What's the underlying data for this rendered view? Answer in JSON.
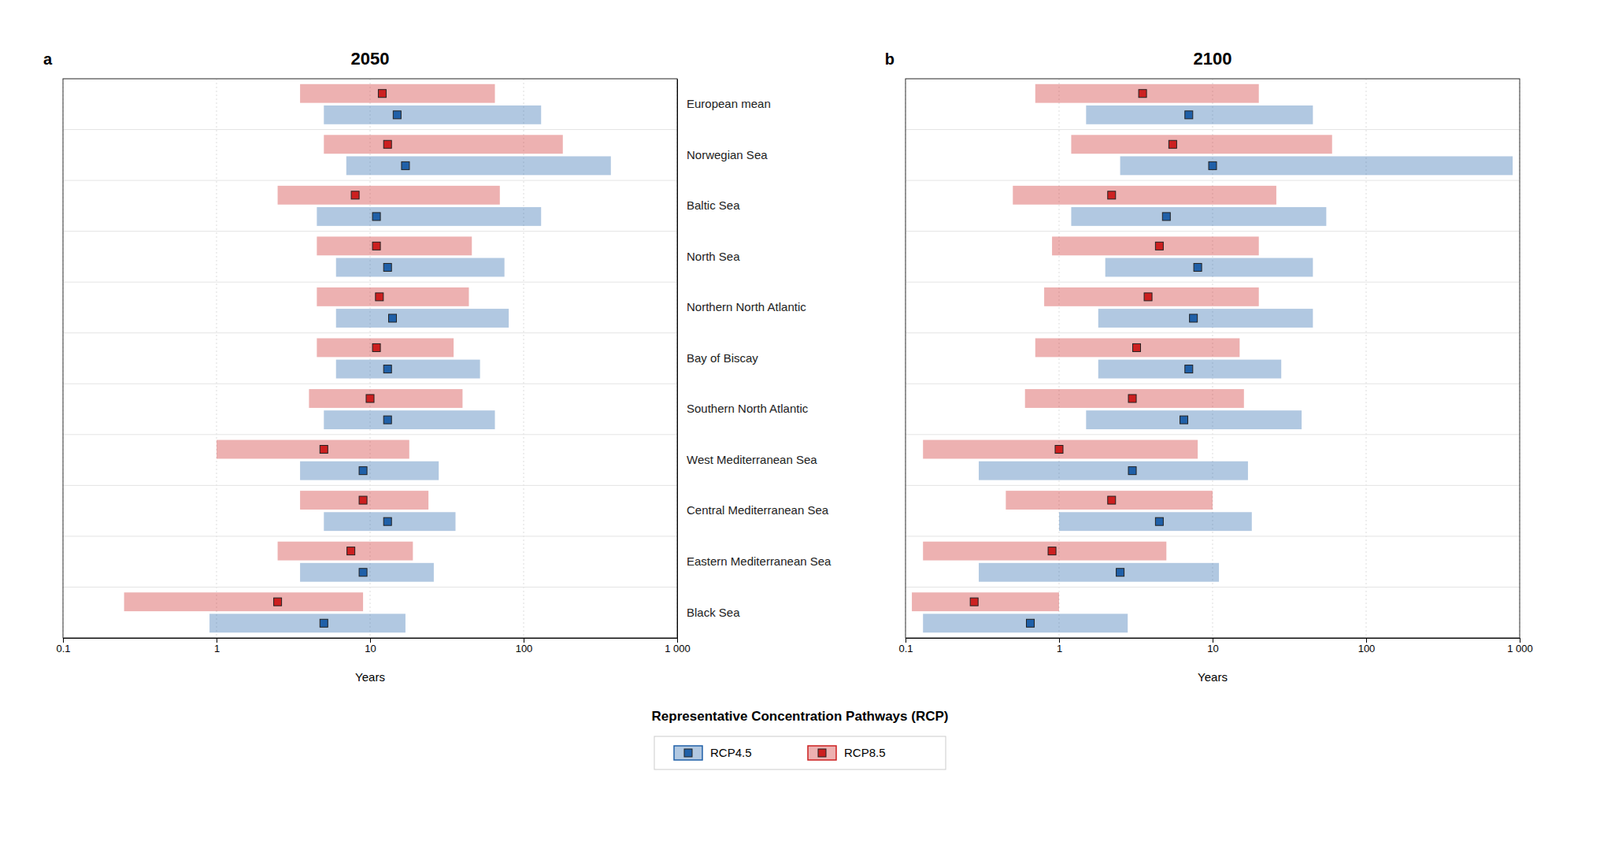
{
  "chart_data": [
    {
      "type": "bar",
      "orientation": "horizontal",
      "title": "2050",
      "annotation": "a",
      "x_label": "Years",
      "log": "x",
      "grid": true,
      "tick_labels": true,
      "legend": "bottom",
      "legend_title": "Representative Concentration Pathways (RCP)",
      "xlim": [
        0.1,
        1000
      ],
      "xticks": [
        0.1,
        1,
        10,
        100,
        {
          "value": 1000,
          "label": "1 000"
        }
      ],
      "categories": [
        "European mean",
        "Norwegian Sea",
        "Baltic Sea",
        "North Sea",
        "Northern North Atlantic",
        "Bay of Biscay",
        "Southern North Atlantic",
        "West Mediterranean Sea",
        "Central Mediterranean Sea",
        "Eastern Mediterranean Sea",
        "Black Sea"
      ],
      "series": [
        {
          "name": "RCP4.5",
          "color": "#2060a8",
          "low": [
            5.0,
            7.0,
            4.5,
            6.0,
            6.0,
            6.0,
            5.0,
            3.5,
            5.0,
            3.5,
            0.9
          ],
          "values": [
            15.0,
            17.0,
            11.0,
            13.0,
            14.0,
            13.0,
            13.0,
            9.0,
            13.0,
            9.0,
            5.0
          ],
          "high": [
            130.0,
            370.0,
            130.0,
            75.0,
            80.0,
            52.0,
            65.0,
            28.0,
            36.0,
            26.0,
            17.0
          ]
        },
        {
          "name": "RCP8.5",
          "color": "#cc2020",
          "low": [
            3.5,
            5.0,
            2.5,
            4.5,
            4.5,
            4.5,
            4.0,
            1.0,
            3.5,
            2.5,
            0.25
          ],
          "values": [
            12.0,
            13.0,
            8.0,
            11.0,
            11.5,
            11.0,
            10.0,
            5.0,
            9.0,
            7.5,
            2.5
          ],
          "high": [
            65.0,
            180.0,
            70.0,
            46.0,
            44.0,
            35.0,
            40.0,
            18.0,
            24.0,
            19.0,
            9.0
          ]
        }
      ]
    },
    {
      "type": "bar",
      "orientation": "horizontal",
      "title": "2100",
      "annotation": "b",
      "x_label": "Years",
      "log": "x",
      "grid": true,
      "tick_labels": "x",
      "xlim": [
        0.1,
        1000
      ],
      "xticks": [
        0.1,
        1,
        10,
        100,
        {
          "value": 1000,
          "label": "1 000"
        }
      ],
      "categories": [
        "European mean",
        "Norwegian Sea",
        "Baltic Sea",
        "North Sea",
        "Northern North Atlantic",
        "Bay of Biscay",
        "Southern North Atlantic",
        "West Mediterranean Sea",
        "Central Mediterranean Sea",
        "Eastern Mediterranean Sea",
        "Black Sea"
      ],
      "series": [
        {
          "name": "RCP4.5",
          "color": "#2060a8",
          "low": [
            1.5,
            2.5,
            1.2,
            2.0,
            1.8,
            1.8,
            1.5,
            0.3,
            1.0,
            0.3,
            0.13
          ],
          "values": [
            7.0,
            10.0,
            5.0,
            8.0,
            7.5,
            7.0,
            6.5,
            3.0,
            4.5,
            2.5,
            0.65
          ],
          "high": [
            45.0,
            900.0,
            55.0,
            45.0,
            45.0,
            28.0,
            38.0,
            17.0,
            18.0,
            11.0,
            2.8
          ]
        },
        {
          "name": "RCP8.5",
          "color": "#cc2020",
          "low": [
            0.7,
            1.2,
            0.5,
            0.9,
            0.8,
            0.7,
            0.6,
            0.13,
            0.45,
            0.13,
            0.11
          ],
          "values": [
            3.5,
            5.5,
            2.2,
            4.5,
            3.8,
            3.2,
            3.0,
            1.0,
            2.2,
            0.9,
            0.28
          ],
          "high": [
            20.0,
            60.0,
            26.0,
            20.0,
            20.0,
            15.0,
            16.0,
            8.0,
            10.0,
            5.0,
            1.0
          ]
        }
      ]
    }
  ]
}
